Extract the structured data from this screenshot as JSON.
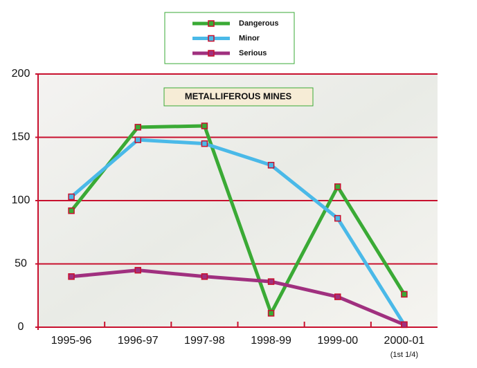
{
  "chart_data": {
    "type": "line",
    "title": "METALLIFEROUS MINES",
    "categories": [
      "1995-96",
      "1996-97",
      "1997-98",
      "1998-99",
      "1999-00",
      "2000-01"
    ],
    "x_note": "(1st 1/4)",
    "series": [
      {
        "name": "Dangerous",
        "color": "#3aaa35",
        "values": [
          92,
          158,
          159,
          11,
          111,
          26
        ]
      },
      {
        "name": "Minor",
        "color": "#4ab9e8",
        "values": [
          103,
          148,
          145,
          128,
          86,
          2
        ]
      },
      {
        "name": "Serious",
        "color": "#a0307f",
        "values": [
          40,
          45,
          40,
          36,
          24,
          2
        ]
      }
    ],
    "ylim": [
      0,
      200
    ],
    "yticks": [
      0,
      50,
      100,
      150,
      200
    ],
    "grid": true,
    "legend": "top"
  }
}
